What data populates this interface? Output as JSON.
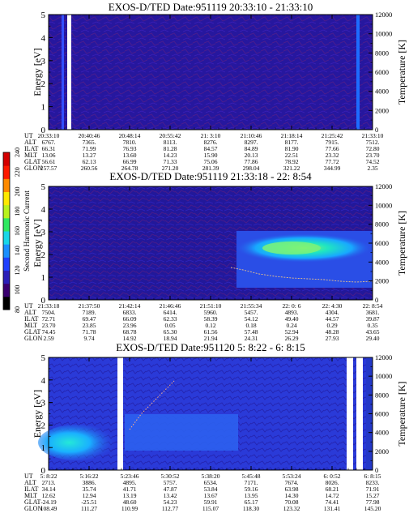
{
  "colorbar": {
    "label": "Second Harmonic Current",
    "ticks": [
      "80",
      "100",
      "120",
      "140",
      "160",
      "180",
      "200",
      "220",
      "240"
    ],
    "colors": [
      "#000000",
      "#3a0070",
      "#2b1fb8",
      "#1f40ff",
      "#1a8fff",
      "#17d7e8",
      "#2fe860",
      "#b8f21c",
      "#ffe900",
      "#ff8a00",
      "#ff1a00",
      "#d40000"
    ]
  },
  "orbit_labels": [
    "UT",
    "ALT",
    "ILAT",
    "MLT",
    "GLAT",
    "GLON"
  ],
  "chart_data": [
    {
      "type": "heatmap",
      "title": "EXOS-D/TED  Date:951119  20:33:10 - 21:33:10",
      "ylabel": "Energy [eV]",
      "y2label": "Temperature [K]",
      "ylim": [
        0,
        5
      ],
      "y2lim": [
        0,
        12000
      ],
      "yticks": [
        "0",
        "1",
        "2",
        "3",
        "4",
        "5"
      ],
      "y2ticks": [
        "0",
        "2000",
        "4000",
        "6000",
        "8000",
        "10000",
        "12000"
      ],
      "orbit_table": [
        [
          "20:33:10",
          "20:40:46",
          "20:48:14",
          "20:55:42",
          "21: 3:10",
          "21:10:46",
          "21:18:14",
          "21:25:42",
          "21:33:10"
        ],
        [
          "6767.",
          "7365.",
          "7810.",
          "8113.",
          "8276.",
          "8297.",
          "8177.",
          "7915.",
          "7512."
        ],
        [
          "66.31",
          "71.99",
          "76.93",
          "81.28",
          "84.57",
          "84.89",
          "81.90",
          "77.66",
          "72.80"
        ],
        [
          "13.06",
          "13.27",
          "13.60",
          "14.23",
          "15.90",
          "20.13",
          "22.51",
          "23.32",
          "23.70"
        ],
        [
          "56.61",
          "62.13",
          "66.99",
          "71.33",
          "75.06",
          "77.86",
          "78.92",
          "77.72",
          "74.52"
        ],
        [
          "257.57",
          "260.56",
          "264.78",
          "271.20",
          "281.39",
          "298.04",
          "321.22",
          "344.99",
          "2.35"
        ]
      ]
    },
    {
      "type": "heatmap",
      "title": "EXOS-D/TED   Date:951119  21:33:18 - 22: 8:54",
      "ylabel": "Energy [eV]",
      "y2label": "Temperature [K]",
      "ylim": [
        0,
        5
      ],
      "y2lim": [
        0,
        12000
      ],
      "yticks": [
        "0",
        "1",
        "2",
        "3",
        "4",
        "5"
      ],
      "y2ticks": [
        "0",
        "2000",
        "4000",
        "6000",
        "8000",
        "10000",
        "12000"
      ],
      "orbit_table": [
        [
          "21:33:18",
          "21:37:50",
          "21:42:14",
          "21:46:46",
          "21:51:10",
          "21:55:34",
          "22: 0: 6",
          "22: 4:30",
          "22: 8:54"
        ],
        [
          "7504.",
          "7189.",
          "6833.",
          "6414.",
          "5960.",
          "5457.",
          "4893.",
          "4304.",
          "3681."
        ],
        [
          "72.71",
          "69.47",
          "66.09",
          "62.33",
          "58.39",
          "54.12",
          "49.40",
          "44.57",
          "39.87"
        ],
        [
          "23.70",
          "23.85",
          "23.96",
          "0.05",
          "0.12",
          "0.18",
          "0.24",
          "0.29",
          "0.35"
        ],
        [
          "74.45",
          "71.78",
          "68.78",
          "65.30",
          "61.56",
          "57.48",
          "52.94",
          "48.28",
          "43.65"
        ],
        [
          "2.59",
          "9.74",
          "14.92",
          "18.94",
          "21.94",
          "24.31",
          "26.29",
          "27.93",
          "29.40"
        ]
      ]
    },
    {
      "type": "heatmap",
      "title": "EXOS-D/TED   Date:951120  5: 8:22 - 6: 8:15",
      "ylabel": "Energy [eV]",
      "y2label": "Temperature [K]",
      "ylim": [
        0,
        5
      ],
      "y2lim": [
        0,
        12000
      ],
      "yticks": [
        "0",
        "1",
        "2",
        "3",
        "4",
        "5"
      ],
      "y2ticks": [
        "0",
        "2000",
        "4000",
        "6000",
        "8000",
        "10000",
        "12000"
      ],
      "orbit_table": [
        [
          "5: 8:22",
          "5:16:22",
          "5:23:46",
          "5:30:52",
          "5:38:20",
          "5:45:48",
          "5:53:24",
          "6: 0:52",
          "6: 8:15"
        ],
        [
          "2713.",
          "3886.",
          "4895.",
          "5757.",
          "6534.",
          "7171.",
          "7674.",
          "8026.",
          "8233."
        ],
        [
          "34.14",
          "35.74",
          "41.71",
          "47.87",
          "53.84",
          "59.16",
          "63.98",
          "68.21",
          "71.91"
        ],
        [
          "12.62",
          "12.94",
          "13.19",
          "13.42",
          "13.67",
          "13.95",
          "14.30",
          "14.72",
          "15.27"
        ],
        [
          "-24.19",
          "-25.51",
          "48.60",
          "54.23",
          "59.91",
          "65.17",
          "70.08",
          "74.41",
          "77.98"
        ],
        [
          "108.49",
          "111.27",
          "110.99",
          "112.77",
          "115.07",
          "118.30",
          "123.32",
          "131.41",
          "145.20"
        ]
      ]
    }
  ]
}
